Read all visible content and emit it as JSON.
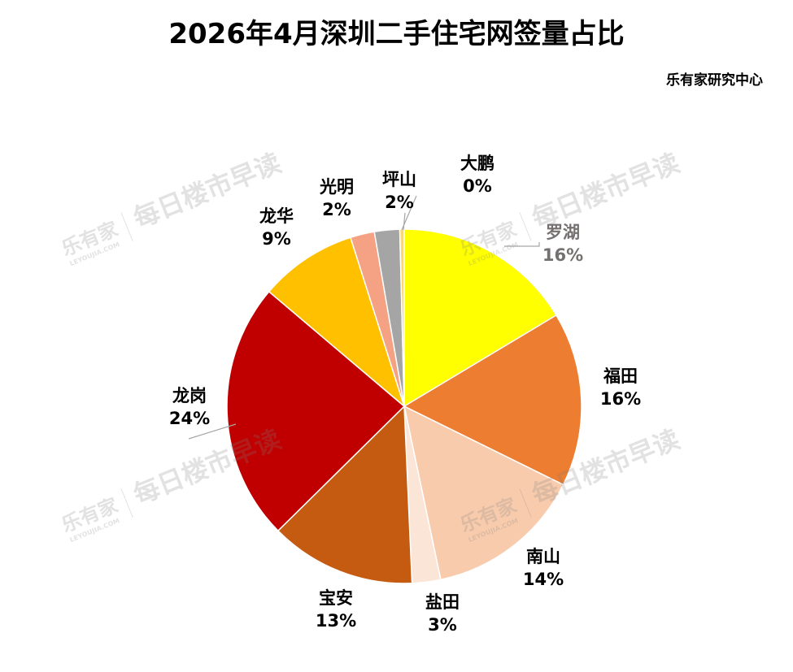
{
  "chart_data": {
    "type": "pie",
    "title": "2026年4月深圳二手住宅网签量占比",
    "source": "乐有家研究中心",
    "slices": [
      {
        "label": "罗湖",
        "percent_label": "16%",
        "value": 16.4,
        "color": "#FFFF00",
        "label_color": "#767171"
      },
      {
        "label": "福田",
        "percent_label": "16%",
        "value": 15.9,
        "color": "#ED7D31",
        "label_color": "#000000"
      },
      {
        "label": "南山",
        "percent_label": "14%",
        "value": 14.4,
        "color": "#F8CBAD",
        "label_color": "#000000"
      },
      {
        "label": "盐田",
        "percent_label": "3%",
        "value": 2.6,
        "color": "#FBE5D6",
        "label_color": "#000000"
      },
      {
        "label": "宝安",
        "percent_label": "13%",
        "value": 13.3,
        "color": "#C55A11",
        "label_color": "#000000"
      },
      {
        "label": "龙岗",
        "percent_label": "24%",
        "value": 23.6,
        "color": "#C00000",
        "label_color": "#000000"
      },
      {
        "label": "龙华",
        "percent_label": "9%",
        "value": 8.9,
        "color": "#FFC000",
        "label_color": "#000000"
      },
      {
        "label": "光明",
        "percent_label": "2%",
        "value": 2.2,
        "color": "#F4A283",
        "label_color": "#000000"
      },
      {
        "label": "坪山",
        "percent_label": "2%",
        "value": 2.3,
        "color": "#A5A5A5",
        "label_color": "#000000"
      },
      {
        "label": "大鹏",
        "percent_label": "0%",
        "value": 0.4,
        "color": "#FFD966",
        "label_color": "#000000"
      }
    ]
  },
  "watermark": {
    "brand": "乐有家",
    "slogan": "每日楼市早读",
    "url": "LEYOUJIA.COM"
  }
}
